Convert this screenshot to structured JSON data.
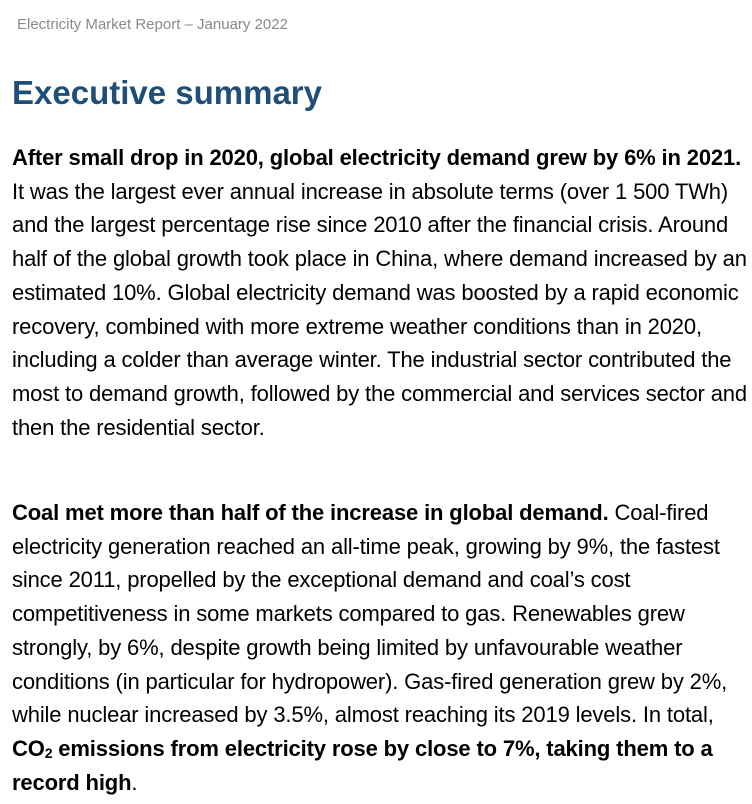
{
  "header": {
    "running_title": "Electricity Market Report – January 2022"
  },
  "section": {
    "title": "Executive summary"
  },
  "paragraphs": {
    "p1": {
      "lead": "After small drop in 2020, global electricity demand grew by 6% in 2021.",
      "body": " It was the largest ever annual increase in absolute terms (over 1 500 TWh) and the largest percentage rise since 2010 after the financial crisis. Around half of the global growth took place in China, where demand increased by an estimated 10%. Global electricity demand was boosted by a rapid economic recovery, combined with more extreme weather conditions than in 2020, including a colder than average winter. The industrial sector contributed the most to demand growth, followed by the commercial and services sector and then the residential sector."
    },
    "p2": {
      "lead": "Coal met more than half of the increase in global demand.",
      "body": " Coal-fired electricity generation reached an all-time peak, growing by 9%, the fastest since 2011, propelled by the exceptional demand and coal’s cost competitiveness in some markets compared to gas. Renewables grew strongly, by 6%, despite growth being limited by unfavourable weather conditions (in particular for hydropower). Gas-fired generation grew by 2%, while nuclear increased by 3.5%, almost reaching its 2019 levels. In total, ",
      "bold_tail_a": "CO",
      "bold_tail_sub": "2",
      "bold_tail_b": " emissions from electricity rose by close to 7%, taking them to a record high",
      "end": "."
    }
  }
}
